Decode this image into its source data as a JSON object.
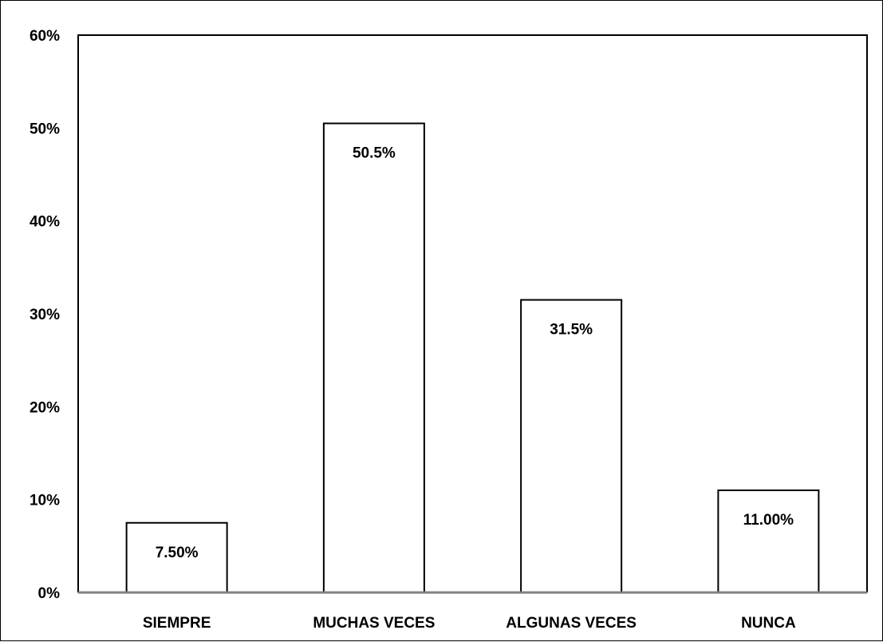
{
  "chart_data": {
    "type": "bar",
    "categories": [
      "SIEMPRE",
      "MUCHAS VECES",
      "ALGUNAS VECES",
      "NUNCA"
    ],
    "values": [
      7.5,
      50.5,
      31.5,
      11.0
    ],
    "data_labels": [
      "7.50%",
      "50.5%",
      "31.5%",
      "11.00%"
    ],
    "yticks": [
      "0%",
      "10%",
      "20%",
      "30%",
      "40%",
      "50%",
      "60%"
    ],
    "ylim": [
      0,
      60
    ],
    "grid": false,
    "bar_fill": "#ffffff",
    "bar_stroke": "#000000",
    "axis_color": "#808080"
  }
}
